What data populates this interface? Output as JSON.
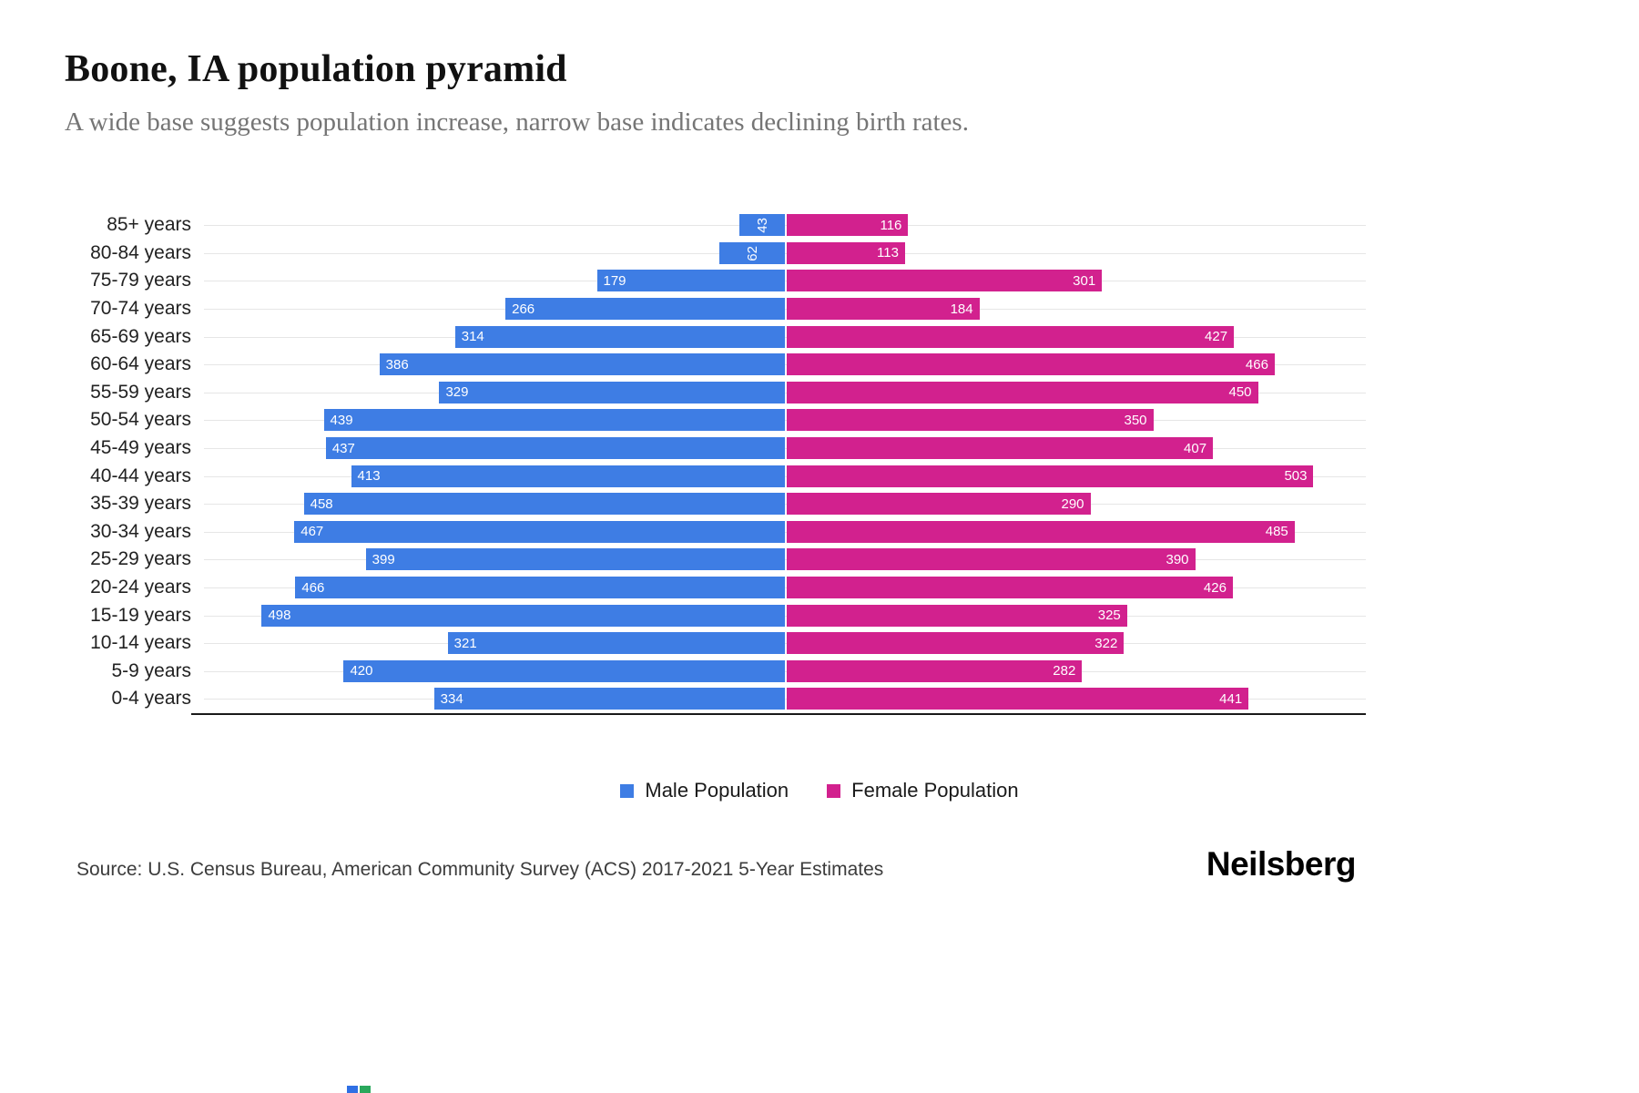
{
  "header": {
    "title": "Boone, IA population pyramid",
    "subtitle": "A wide base suggests population increase, narrow base indicates declining birth rates."
  },
  "chart_data": {
    "type": "bar",
    "variant": "population-pyramid",
    "title": "Boone, IA population pyramid",
    "xlabel": "",
    "ylabel": "",
    "grid": true,
    "legend_position": "bottom",
    "axis_max": 553,
    "categories": [
      "85+ years",
      "80-84 years",
      "75-79 years",
      "70-74 years",
      "65-69 years",
      "60-64 years",
      "55-59 years",
      "50-54 years",
      "45-49 years",
      "40-44 years",
      "35-39 years",
      "30-34 years",
      "25-29 years",
      "20-24 years",
      "15-19 years",
      "10-14 years",
      "5-9 years",
      "0-4 years"
    ],
    "series": [
      {
        "name": "Male Population",
        "color": "#3E7DE4",
        "values": [
          43,
          62,
          179,
          266,
          314,
          386,
          329,
          439,
          437,
          413,
          458,
          467,
          399,
          466,
          498,
          321,
          420,
          334
        ]
      },
      {
        "name": "Female Population",
        "color": "#D2218E",
        "values": [
          116,
          113,
          301,
          184,
          427,
          466,
          450,
          350,
          407,
          503,
          290,
          485,
          390,
          426,
          325,
          322,
          282,
          441
        ]
      }
    ]
  },
  "legend": {
    "male_label": "Male Population",
    "female_label": "Female Population"
  },
  "footer": {
    "source": "Source: U.S. Census Bureau, American Community Survey (ACS) 2017-2021 5-Year Estimates",
    "brand": "Neilsberg"
  },
  "colors": {
    "male": "#3E7DE4",
    "female": "#D2218E"
  }
}
